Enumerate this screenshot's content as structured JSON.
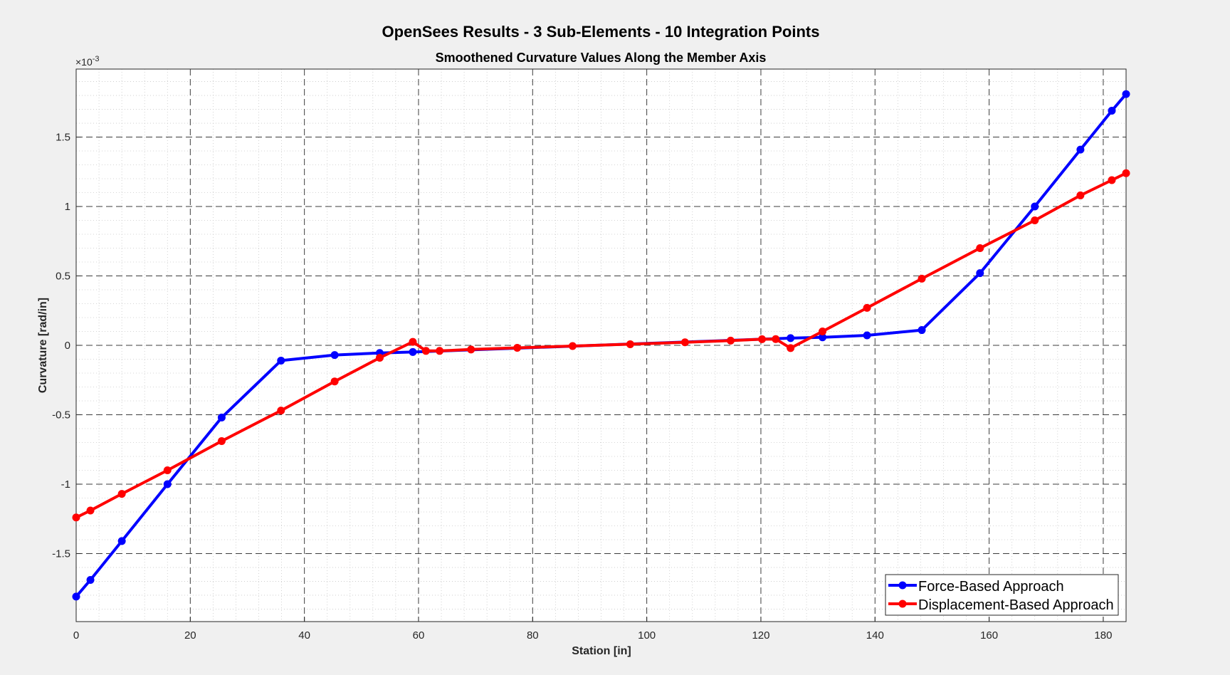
{
  "chart_data": {
    "type": "line",
    "suptitle": "OpenSees Results - 3 Sub-Elements - 10 Integration Points",
    "title": "Smoothened Curvature Values Along the Member Axis",
    "xlabel": "Station [in]",
    "ylabel": "Curvature [rad/in]",
    "exponent_label": "×10",
    "exponent_power": "-3",
    "xlim": [
      0,
      184
    ],
    "ylim": [
      -1.99,
      1.99
    ],
    "xticks": [
      0,
      20,
      40,
      60,
      80,
      100,
      120,
      140,
      160,
      180
    ],
    "xtick_labels": [
      "0",
      "20",
      "40",
      "60",
      "80",
      "100",
      "120",
      "140",
      "160",
      "180"
    ],
    "yticks": [
      1.5,
      1,
      0.5,
      0,
      -0.5,
      -1,
      -1.5
    ],
    "ytick_labels": [
      "1.5",
      "1",
      "0.5",
      "0",
      "-0.5",
      "-1",
      "-1.5"
    ],
    "y_scale_factor": 0.001,
    "grid": "major dashed, minor dotted",
    "legend_position": "bottom-right",
    "series": [
      {
        "name": "Force-Based Approach",
        "color": "#0000ff",
        "x": [
          0,
          2.5,
          8,
          16,
          25.5,
          35.9,
          45.3,
          53.2,
          59,
          125.2,
          130.8,
          138.6,
          148.2,
          158.4,
          168,
          176,
          181.5,
          184
        ],
        "y": [
          -1.81,
          -1.69,
          -1.41,
          -1.0,
          -0.52,
          -0.11,
          -0.07,
          -0.055,
          -0.048,
          0.052,
          0.058,
          0.072,
          0.11,
          0.52,
          1.0,
          1.41,
          1.69,
          1.81
        ]
      },
      {
        "name": "Displacement-Based Approach",
        "color": "#ff0000",
        "x": [
          0,
          2.5,
          8,
          16,
          25.5,
          35.9,
          45.3,
          53.2,
          59,
          61.3,
          63.7,
          69.2,
          77.3,
          87,
          97.1,
          106.7,
          114.7,
          120.2,
          122.6,
          125.2,
          130.8,
          138.6,
          148.2,
          158.4,
          168,
          176,
          181.5,
          184
        ],
        "y": [
          -1.24,
          -1.19,
          -1.07,
          -0.9,
          -0.69,
          -0.47,
          -0.26,
          -0.09,
          0.025,
          -0.04,
          -0.04,
          -0.03,
          -0.018,
          -0.005,
          0.008,
          0.022,
          0.034,
          0.044,
          0.045,
          -0.02,
          0.1,
          0.27,
          0.48,
          0.7,
          0.9,
          1.08,
          1.19,
          1.24
        ]
      }
    ]
  }
}
